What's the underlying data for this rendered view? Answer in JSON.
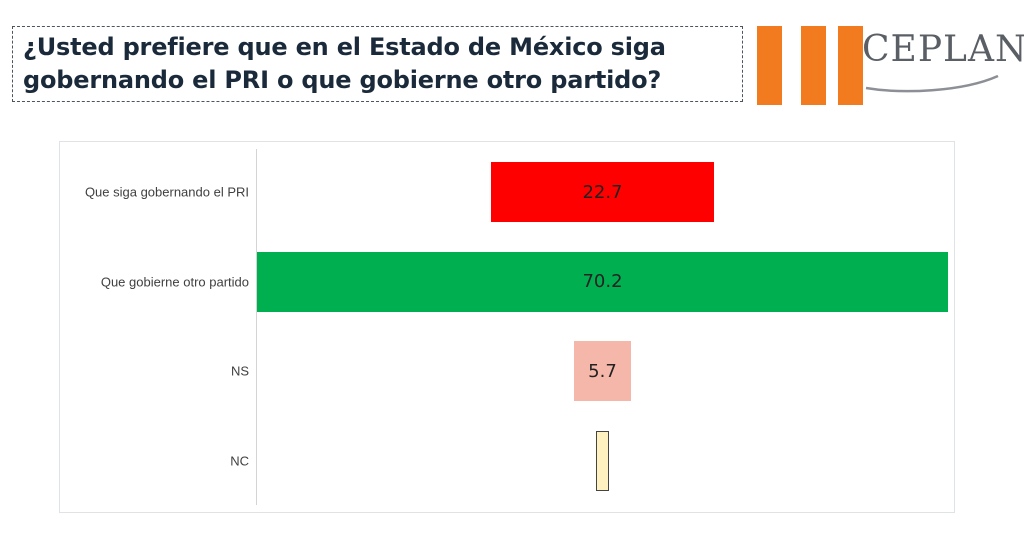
{
  "header": {
    "title_line1": "¿Usted prefiere que en el Estado de México siga",
    "title_line2": "gobernando el PRI o que gobierne otro partido?"
  },
  "logo": {
    "text": "CEPLAN",
    "bars_color": "#f27b1f"
  },
  "chart_data": {
    "type": "bar",
    "orientation": "horizontal",
    "layout": "centered",
    "categories": [
      "Que siga gobernando el PRI",
      "Que gobierne otro partido",
      "NS",
      "NC"
    ],
    "values": [
      22.7,
      70.2,
      5.7,
      1.4
    ],
    "data_labels": [
      "22.7",
      "70.2",
      "5.7",
      ""
    ],
    "colors": [
      "#ff0000",
      "#00b050",
      "#f4b7a9",
      "#fff2c0"
    ],
    "xlim": [
      0,
      70.2
    ],
    "grid": false,
    "legend": "none"
  }
}
